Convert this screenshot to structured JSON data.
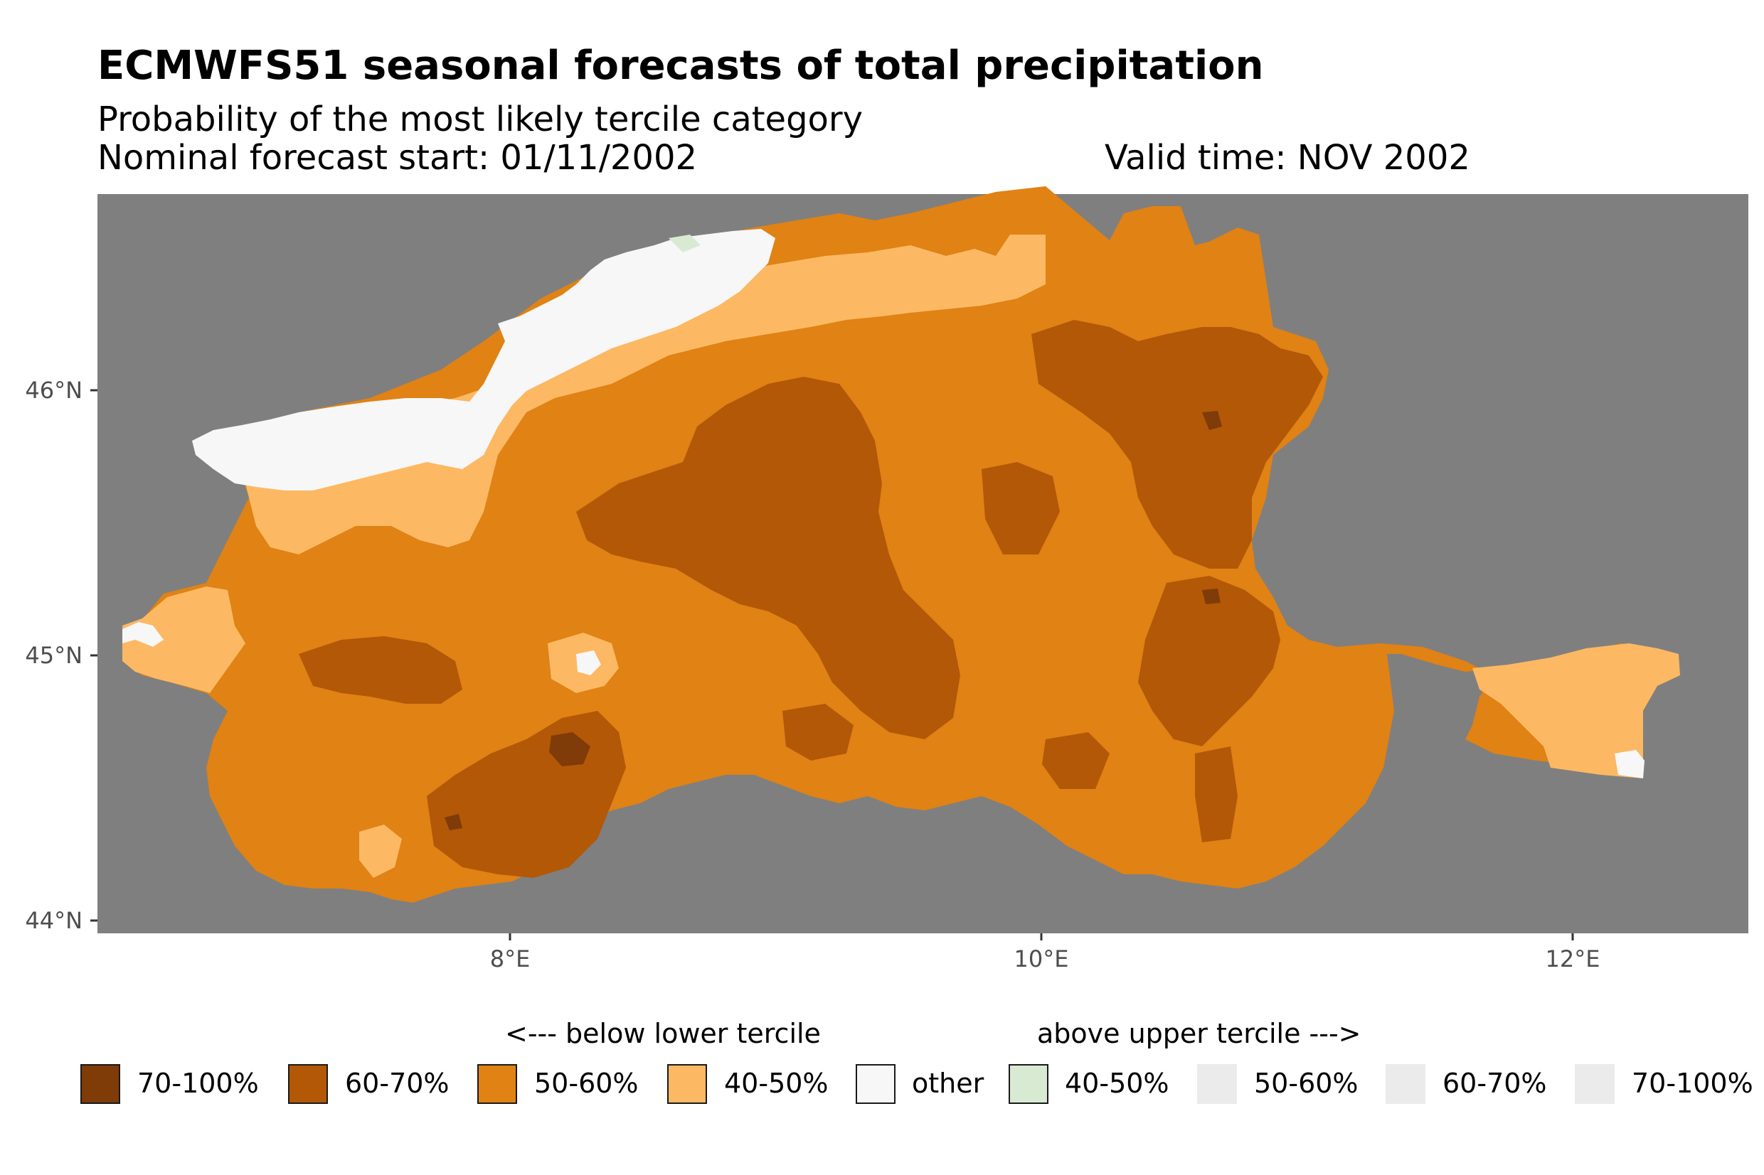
{
  "title": "ECMWFS51 seasonal forecasts of total precipitation",
  "subtitle": "Probability of the most likely tercile category",
  "forecast_start": "Nominal forecast start: 01/11/2002",
  "valid_time": "Valid time: NOV 2002",
  "axes": {
    "y_ticks": [
      "46°N",
      "45°N",
      "44°N"
    ],
    "x_ticks": [
      "8°E",
      "10°E",
      "12°E"
    ],
    "lat_range": [
      43.95,
      46.65
    ],
    "lon_range": [
      6.45,
      12.65
    ]
  },
  "legend": {
    "below_title": "<--- below lower tercile",
    "above_title": "above upper tercile --->",
    "items": [
      {
        "label": "70-100%",
        "color": "#7f3b08"
      },
      {
        "label": "60-70%",
        "color": "#b35806"
      },
      {
        "label": "50-60%",
        "color": "#e08214"
      },
      {
        "label": "40-50%",
        "color": "#fdb863"
      },
      {
        "label": "other",
        "color": "#f7f7f7"
      },
      {
        "label": "40-50%",
        "color": "#d9ead3"
      },
      {
        "label": "50-60%",
        "color": "#ebebeb"
      },
      {
        "label": "60-70%",
        "color": "#ebebeb"
      },
      {
        "label": "70-100%",
        "color": "#ebebeb"
      }
    ]
  },
  "colors": {
    "panel_background": "#7f7f7f",
    "cat_70_100_below": "#7f3b08",
    "cat_60_70_below": "#b35806",
    "cat_50_60_below": "#e08214",
    "cat_40_50_below": "#fdb863",
    "cat_other": "#f7f7f7",
    "cat_40_50_above": "#d9ead3"
  }
}
